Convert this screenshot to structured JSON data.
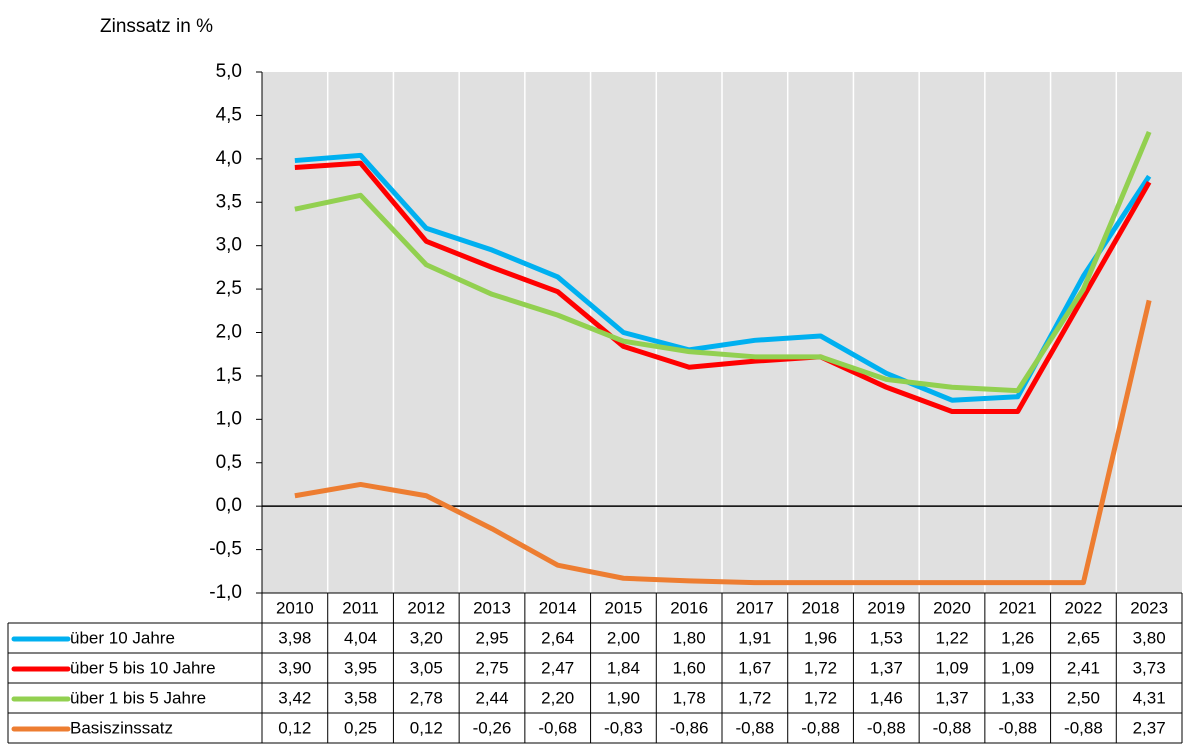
{
  "chart_data": {
    "type": "line",
    "y_label": "Zinssatz in %",
    "categories": [
      "2010",
      "2011",
      "2012",
      "2013",
      "2014",
      "2015",
      "2016",
      "2017",
      "2018",
      "2019",
      "2020",
      "2021",
      "2022",
      "2023"
    ],
    "series": [
      {
        "name": "über 10 Jahre",
        "color": "#00b0f0",
        "values": [
          3.98,
          4.04,
          3.2,
          2.95,
          2.64,
          2.0,
          1.8,
          1.91,
          1.96,
          1.53,
          1.22,
          1.26,
          2.65,
          3.8
        ],
        "value_labels": [
          "3,98",
          "4,04",
          "3,20",
          "2,95",
          "2,64",
          "2,00",
          "1,80",
          "1,91",
          "1,96",
          "1,53",
          "1,22",
          "1,26",
          "2,65",
          "3,80"
        ]
      },
      {
        "name": "über 5 bis 10 Jahre",
        "color": "#ff0000",
        "values": [
          3.9,
          3.95,
          3.05,
          2.75,
          2.47,
          1.84,
          1.6,
          1.67,
          1.72,
          1.37,
          1.09,
          1.09,
          2.41,
          3.73
        ],
        "value_labels": [
          "3,90",
          "3,95",
          "3,05",
          "2,75",
          "2,47",
          "1,84",
          "1,60",
          "1,67",
          "1,72",
          "1,37",
          "1,09",
          "1,09",
          "2,41",
          "3,73"
        ]
      },
      {
        "name": "über 1 bis 5 Jahre",
        "color": "#92d050",
        "values": [
          3.42,
          3.58,
          2.78,
          2.44,
          2.2,
          1.9,
          1.78,
          1.72,
          1.72,
          1.46,
          1.37,
          1.33,
          2.5,
          4.31
        ],
        "value_labels": [
          "3,42",
          "3,58",
          "2,78",
          "2,44",
          "2,20",
          "1,90",
          "1,78",
          "1,72",
          "1,72",
          "1,46",
          "1,37",
          "1,33",
          "2,50",
          "4,31"
        ]
      },
      {
        "name": "Basiszinssatz",
        "color": "#ed7d31",
        "values": [
          0.12,
          0.25,
          0.12,
          -0.26,
          -0.68,
          -0.83,
          -0.86,
          -0.88,
          -0.88,
          -0.88,
          -0.88,
          -0.88,
          -0.88,
          2.37
        ],
        "value_labels": [
          "0,12",
          "0,25",
          "0,12",
          "-0,26",
          "-0,68",
          "-0,83",
          "-0,86",
          "-0,88",
          "-0,88",
          "-0,88",
          "-0,88",
          "-0,88",
          "-0,88",
          "2,37"
        ]
      }
    ],
    "ylim": [
      -1,
      5
    ],
    "yticks": [
      {
        "value": -1,
        "label": "-1,0"
      },
      {
        "value": -0.5,
        "label": "-0,5"
      },
      {
        "value": 0,
        "label": "0,0"
      },
      {
        "value": 0.5,
        "label": "0,5"
      },
      {
        "value": 1,
        "label": "1,0"
      },
      {
        "value": 1.5,
        "label": "1,5"
      },
      {
        "value": 2,
        "label": "2,0"
      },
      {
        "value": 2.5,
        "label": "2,5"
      },
      {
        "value": 3,
        "label": "3,0"
      },
      {
        "value": 3.5,
        "label": "3,5"
      },
      {
        "value": 4,
        "label": "4,0"
      },
      {
        "value": 4.5,
        "label": "4,5"
      },
      {
        "value": 5,
        "label": "5,0"
      }
    ],
    "plot_background": "#e0e0e0"
  }
}
